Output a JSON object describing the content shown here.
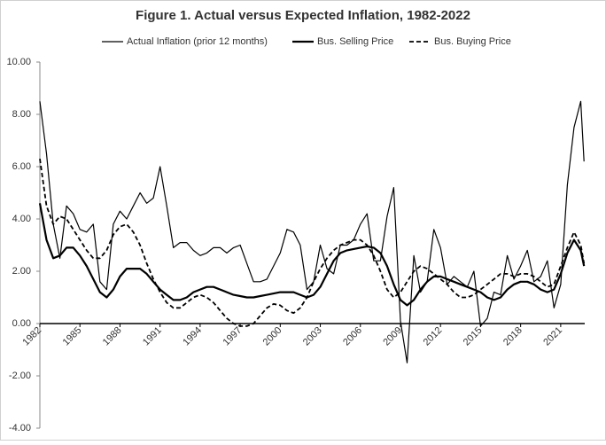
{
  "chart_data": {
    "type": "line",
    "title": "Figure 1. Actual versus Expected Inflation, 1982-2022",
    "x": [
      1982,
      1982.5,
      1983,
      1983.5,
      1984,
      1984.5,
      1985,
      1985.5,
      1986,
      1986.5,
      1987,
      1987.5,
      1988,
      1988.5,
      1989,
      1989.5,
      1990,
      1990.5,
      1991,
      1991.5,
      1992,
      1992.5,
      1993,
      1993.5,
      1994,
      1994.5,
      1995,
      1995.5,
      1996,
      1996.5,
      1997,
      1997.5,
      1998,
      1998.5,
      1999,
      1999.5,
      2000,
      2000.5,
      2001,
      2001.5,
      2002,
      2002.5,
      2003,
      2003.5,
      2004,
      2004.5,
      2005,
      2005.5,
      2006,
      2006.5,
      2007,
      2007.5,
      2008,
      2008.5,
      2009,
      2009.5,
      2010,
      2010.5,
      2011,
      2011.5,
      2012,
      2012.5,
      2013,
      2013.5,
      2014,
      2014.5,
      2015,
      2015.5,
      2016,
      2016.5,
      2017,
      2017.5,
      2018,
      2018.5,
      2019,
      2019.5,
      2020,
      2020.5,
      2021,
      2021.5,
      2022,
      2022.5,
      2022.75
    ],
    "series": [
      {
        "name": "Actual Inflation (prior 12 months)",
        "color": "#000000",
        "width": 1.2,
        "dashed": false,
        "values": [
          8.5,
          6.5,
          3.8,
          2.5,
          4.5,
          4.2,
          3.6,
          3.5,
          3.8,
          1.6,
          1.3,
          3.8,
          4.3,
          4.0,
          4.5,
          5.0,
          4.6,
          4.8,
          6.0,
          4.5,
          2.9,
          3.1,
          3.1,
          2.8,
          2.6,
          2.7,
          2.9,
          2.9,
          2.7,
          2.9,
          3.0,
          2.3,
          1.6,
          1.6,
          1.7,
          2.2,
          2.7,
          3.6,
          3.5,
          3.0,
          1.3,
          1.6,
          3.0,
          2.1,
          1.9,
          3.0,
          3.0,
          3.2,
          3.8,
          4.2,
          2.4,
          2.4,
          4.1,
          5.2,
          0.1,
          -1.5,
          2.6,
          1.2,
          1.6,
          3.6,
          2.9,
          1.5,
          1.8,
          1.6,
          1.4,
          2.0,
          -0.1,
          0.2,
          1.2,
          1.1,
          2.6,
          1.7,
          2.2,
          2.8,
          1.6,
          1.8,
          2.4,
          0.6,
          1.5,
          5.3,
          7.5,
          8.5,
          6.2
        ]
      },
      {
        "name": "Bus. Selling Price",
        "color": "#000000",
        "width": 2.2,
        "dashed": false,
        "values": [
          4.6,
          3.2,
          2.5,
          2.6,
          2.9,
          2.9,
          2.6,
          2.2,
          1.7,
          1.2,
          1.0,
          1.3,
          1.8,
          2.1,
          2.1,
          2.1,
          1.9,
          1.6,
          1.3,
          1.1,
          0.9,
          0.9,
          1.0,
          1.2,
          1.3,
          1.4,
          1.4,
          1.3,
          1.2,
          1.1,
          1.05,
          1.0,
          1.0,
          1.05,
          1.1,
          1.15,
          1.2,
          1.2,
          1.2,
          1.1,
          1.0,
          1.1,
          1.4,
          1.9,
          2.4,
          2.7,
          2.8,
          2.85,
          2.9,
          2.95,
          2.9,
          2.7,
          2.2,
          1.5,
          0.9,
          0.7,
          0.9,
          1.3,
          1.6,
          1.8,
          1.8,
          1.7,
          1.6,
          1.5,
          1.4,
          1.3,
          1.2,
          1.0,
          0.9,
          1.0,
          1.3,
          1.5,
          1.6,
          1.6,
          1.5,
          1.3,
          1.2,
          1.3,
          1.9,
          2.7,
          3.2,
          2.8,
          2.2
        ]
      },
      {
        "name": "Bus. Buying Price",
        "color": "#000000",
        "width": 1.8,
        "dashed": true,
        "values": [
          6.3,
          4.5,
          3.8,
          4.1,
          4.0,
          3.6,
          3.2,
          2.8,
          2.5,
          2.5,
          2.8,
          3.4,
          3.7,
          3.8,
          3.5,
          3.0,
          2.3,
          1.7,
          1.2,
          0.8,
          0.6,
          0.6,
          0.8,
          1.0,
          1.1,
          1.0,
          0.8,
          0.5,
          0.2,
          0.0,
          -0.1,
          -0.1,
          0.0,
          0.3,
          0.6,
          0.75,
          0.7,
          0.5,
          0.4,
          0.6,
          1.0,
          1.6,
          2.1,
          2.5,
          2.8,
          3.0,
          3.1,
          3.2,
          3.2,
          3.0,
          2.6,
          2.0,
          1.3,
          1.0,
          1.2,
          1.6,
          2.0,
          2.2,
          2.1,
          1.9,
          1.7,
          1.5,
          1.2,
          1.0,
          1.0,
          1.1,
          1.3,
          1.5,
          1.7,
          1.9,
          1.9,
          1.8,
          1.9,
          1.9,
          1.8,
          1.6,
          1.4,
          1.5,
          2.2,
          2.9,
          3.5,
          3.0,
          2.3
        ]
      }
    ],
    "xlim": [
      1982,
      2022.8
    ],
    "xticks": [
      1982,
      1985,
      1988,
      1991,
      1994,
      1997,
      2000,
      2003,
      2006,
      2009,
      2012,
      2015,
      2018,
      2021
    ],
    "ylim": [
      -4,
      10
    ],
    "yticks": [
      {
        "value": -4,
        "label": "-4.00"
      },
      {
        "value": -2,
        "label": "-2.00"
      },
      {
        "value": 0,
        "label": "0.00"
      },
      {
        "value": 2,
        "label": "2.00"
      },
      {
        "value": 4,
        "label": "4.00"
      },
      {
        "value": 6,
        "label": "6.00"
      },
      {
        "value": 8,
        "label": "8.00"
      },
      {
        "value": 10,
        "label": "10.00"
      }
    ],
    "grid": false
  }
}
